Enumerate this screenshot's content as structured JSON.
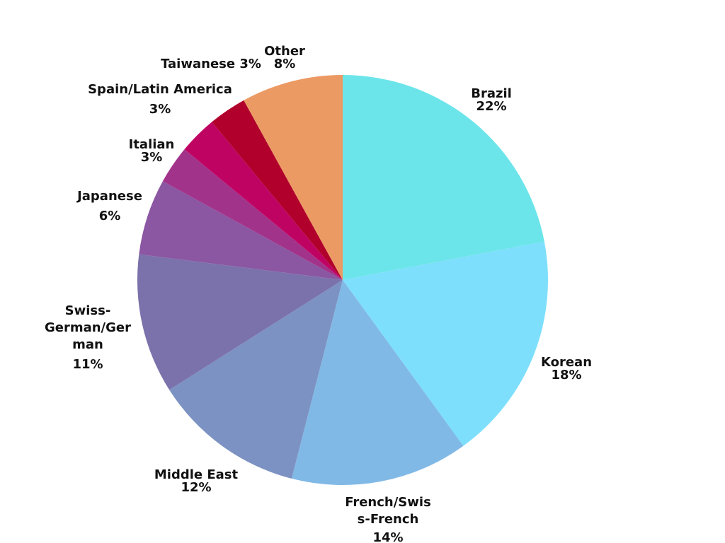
{
  "chart_data": {
    "type": "pie",
    "title": "",
    "start_angle_deg": 0,
    "direction": "clockwise",
    "slices": [
      {
        "key": "brazil",
        "lines": [
          "Brazil"
        ],
        "label": "Brazil",
        "value": 22,
        "value_label": "22%",
        "color": "#6ce5ea"
      },
      {
        "key": "korean",
        "lines": [
          "Korean"
        ],
        "label": "Korean",
        "value": 18,
        "value_label": "18%",
        "color": "#7ddffb"
      },
      {
        "key": "french",
        "lines": [
          "French/Swis",
          "s-French"
        ],
        "label": "French/Swiss-French",
        "value": 14,
        "value_label": "14%",
        "color": "#81b9e6"
      },
      {
        "key": "middle-east",
        "lines": [
          "Middle East"
        ],
        "label": "Middle East",
        "value": 12,
        "value_label": "12%",
        "color": "#7c92c2"
      },
      {
        "key": "german",
        "lines": [
          "Swiss-",
          "German/Ger",
          "man"
        ],
        "label": "Swiss-German/German",
        "value": 11,
        "value_label": "11%",
        "color": "#7b72ab"
      },
      {
        "key": "japanese",
        "lines": [
          "Japanese"
        ],
        "label": "Japanese",
        "value": 6,
        "value_label": "6%",
        "color": "#8b56a2"
      },
      {
        "key": "italian",
        "lines": [
          "Italian"
        ],
        "label": "Italian",
        "value": 3,
        "value_label": "3%",
        "color": "#a2338b"
      },
      {
        "key": "spain",
        "lines": [
          "Spain/Latin America"
        ],
        "label": "Spain/Latin America",
        "value": 3,
        "value_label": "3%",
        "color": "#bf0363"
      },
      {
        "key": "taiwanese",
        "lines": [
          "Taiwanese 3%"
        ],
        "label": "Taiwanese",
        "value": 3,
        "value_label": "",
        "color": "#b1002b"
      },
      {
        "key": "other",
        "lines": [
          "Other"
        ],
        "label": "Other",
        "value": 8,
        "value_label": "8%",
        "color": "#ec9a63"
      }
    ]
  }
}
